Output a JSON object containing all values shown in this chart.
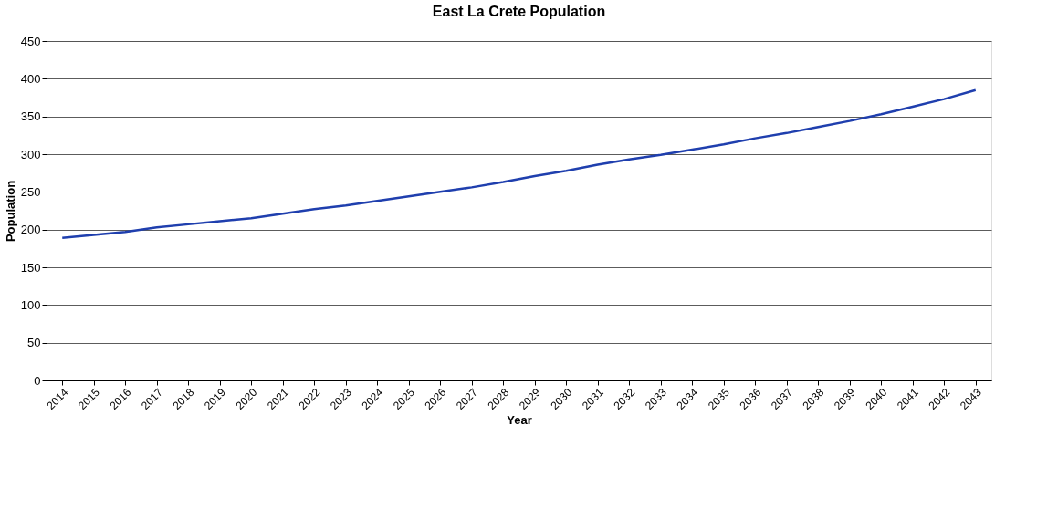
{
  "chart_data": {
    "type": "line",
    "title": "East La Crete Population",
    "xlabel": "Year",
    "ylabel": "Population",
    "categories": [
      "2014",
      "2015",
      "2016",
      "2017",
      "2018",
      "2019",
      "2020",
      "2021",
      "2022",
      "2023",
      "2024",
      "2025",
      "2026",
      "2027",
      "2028",
      "2029",
      "2030",
      "2031",
      "2032",
      "2033",
      "2034",
      "2035",
      "2036",
      "2037",
      "2038",
      "2039",
      "2040",
      "2041",
      "2042",
      "2043"
    ],
    "series": [
      {
        "color": "#1f3fae",
        "values": [
          189,
          193,
          197,
          203,
          207,
          211,
          215,
          221,
          227,
          232,
          238,
          244,
          250,
          256,
          263,
          271,
          278,
          286,
          293,
          299,
          306,
          313,
          321,
          328,
          336,
          344,
          353,
          363,
          373,
          385
        ]
      }
    ],
    "ylim": [
      0,
      450
    ],
    "yticks": [
      0,
      50,
      100,
      150,
      200,
      250,
      300,
      350,
      400,
      450
    ],
    "grid": "y",
    "legend": false,
    "marker": "none",
    "line_style": "solid"
  }
}
